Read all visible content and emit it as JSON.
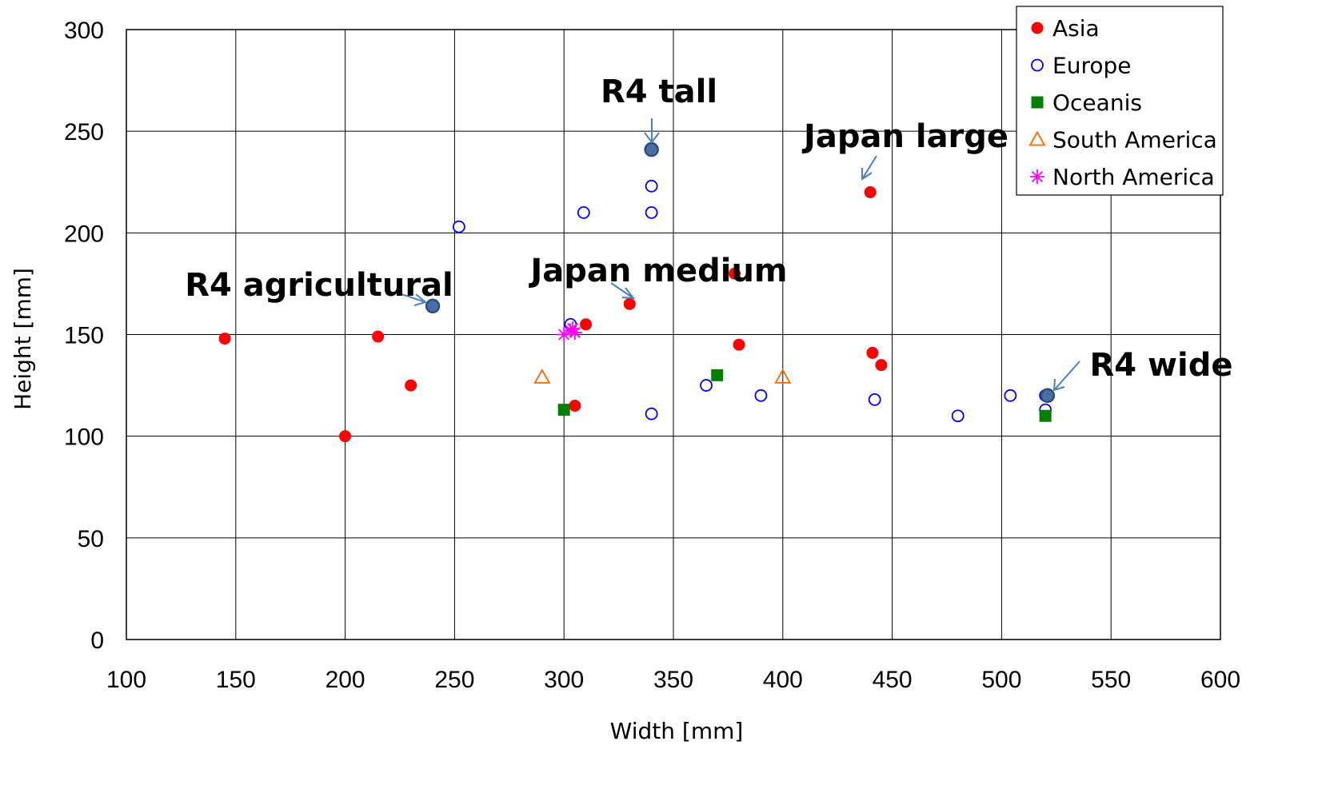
{
  "chart_data": {
    "type": "scatter",
    "xlabel": "Width [mm]",
    "ylabel": "Height [mm]",
    "xlim": [
      100,
      600
    ],
    "ylim": [
      0,
      300
    ],
    "x_ticks": [
      100,
      150,
      200,
      250,
      300,
      350,
      400,
      450,
      500,
      550,
      600
    ],
    "y_ticks": [
      0,
      50,
      100,
      150,
      200,
      250,
      300
    ],
    "grid": true,
    "legend_position": "top-right",
    "series": [
      {
        "name": "Asia",
        "marker": "filled-circle",
        "color": "#ff0000",
        "points": [
          {
            "x": 145,
            "y": 148
          },
          {
            "x": 200,
            "y": 100
          },
          {
            "x": 215,
            "y": 149
          },
          {
            "x": 230,
            "y": 125
          },
          {
            "x": 305,
            "y": 115
          },
          {
            "x": 310,
            "y": 155
          },
          {
            "x": 330,
            "y": 165
          },
          {
            "x": 378,
            "y": 180
          },
          {
            "x": 380,
            "y": 145
          },
          {
            "x": 440,
            "y": 220
          },
          {
            "x": 441,
            "y": 141
          },
          {
            "x": 445,
            "y": 135
          }
        ]
      },
      {
        "name": "Europe",
        "marker": "open-circle",
        "color": "#0000ff",
        "points": [
          {
            "x": 252,
            "y": 203
          },
          {
            "x": 303,
            "y": 155
          },
          {
            "x": 309,
            "y": 210
          },
          {
            "x": 340,
            "y": 241
          },
          {
            "x": 340,
            "y": 223
          },
          {
            "x": 340,
            "y": 210
          },
          {
            "x": 340,
            "y": 111
          },
          {
            "x": 365,
            "y": 125
          },
          {
            "x": 390,
            "y": 120
          },
          {
            "x": 442,
            "y": 118
          },
          {
            "x": 480,
            "y": 110
          },
          {
            "x": 504,
            "y": 120
          },
          {
            "x": 520,
            "y": 113
          },
          {
            "x": 520,
            "y": 120
          }
        ]
      },
      {
        "name": "Oceanis",
        "marker": "filled-square",
        "color": "#008000",
        "points": [
          {
            "x": 300,
            "y": 113
          },
          {
            "x": 370,
            "y": 130
          },
          {
            "x": 520,
            "y": 110
          }
        ]
      },
      {
        "name": "South America",
        "marker": "open-triangle",
        "color": "#ff6600",
        "points": [
          {
            "x": 290,
            "y": 129
          },
          {
            "x": 400,
            "y": 129
          }
        ]
      },
      {
        "name": "North America",
        "marker": "asterisk",
        "color": "#ff00ff",
        "points": [
          {
            "x": 300,
            "y": 150
          },
          {
            "x": 303,
            "y": 152
          },
          {
            "x": 304,
            "y": 153
          },
          {
            "x": 305,
            "y": 151
          }
        ]
      }
    ],
    "highlights": {
      "color": "#4a6fa5",
      "points": [
        {
          "x": 240,
          "y": 164
        },
        {
          "x": 340,
          "y": 241
        },
        {
          "x": 521,
          "y": 120
        }
      ]
    },
    "annotations": [
      {
        "text": "R4 tall"
      },
      {
        "text": "Japan large"
      },
      {
        "text": "R4 agricultural"
      },
      {
        "text": "Japan medium"
      },
      {
        "text": "R4 wide"
      }
    ]
  }
}
